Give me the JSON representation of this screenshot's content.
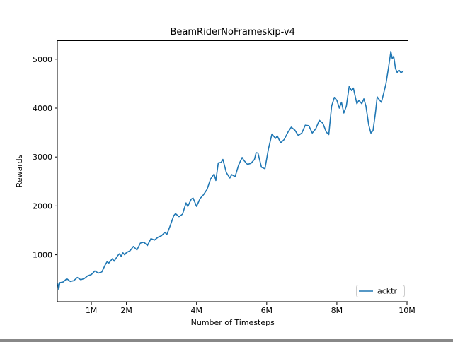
{
  "figure": {
    "background_color": "#ffffff",
    "accent_color": "#1f77b4",
    "spine_color": "#000000"
  },
  "chart_data": {
    "type": "line",
    "title": "BeamRiderNoFrameskip-v4",
    "xlabel": "Number of Timesteps",
    "ylabel": "Rewards",
    "x_unit": "millions of timesteps",
    "xlim": [
      0.03,
      10.03
    ],
    "ylim": [
      40,
      5380
    ],
    "grid": false,
    "legend_position": "lower right",
    "x_ticks": [
      {
        "value": 1,
        "label": "1M"
      },
      {
        "value": 2,
        "label": "2M"
      },
      {
        "value": 4,
        "label": "4M"
      },
      {
        "value": 6,
        "label": "6M"
      },
      {
        "value": 8,
        "label": "8M"
      },
      {
        "value": 10,
        "label": "10M"
      }
    ],
    "y_ticks": [
      {
        "value": 1000,
        "label": "1000"
      },
      {
        "value": 2000,
        "label": "2000"
      },
      {
        "value": 3000,
        "label": "3000"
      },
      {
        "value": 4000,
        "label": "4000"
      },
      {
        "value": 5000,
        "label": "5000"
      }
    ],
    "series": [
      {
        "name": "acktr",
        "color": "#1f77b4",
        "points": [
          [
            0.05,
            400
          ],
          [
            0.07,
            290
          ],
          [
            0.1,
            430
          ],
          [
            0.2,
            445
          ],
          [
            0.3,
            510
          ],
          [
            0.4,
            455
          ],
          [
            0.5,
            470
          ],
          [
            0.6,
            535
          ],
          [
            0.7,
            490
          ],
          [
            0.8,
            515
          ],
          [
            0.9,
            570
          ],
          [
            1.0,
            595
          ],
          [
            1.1,
            670
          ],
          [
            1.2,
            625
          ],
          [
            1.3,
            650
          ],
          [
            1.4,
            800
          ],
          [
            1.45,
            860
          ],
          [
            1.5,
            830
          ],
          [
            1.6,
            920
          ],
          [
            1.65,
            870
          ],
          [
            1.75,
            980
          ],
          [
            1.8,
            1020
          ],
          [
            1.85,
            970
          ],
          [
            1.9,
            1040
          ],
          [
            1.95,
            1000
          ],
          [
            2.0,
            1045
          ],
          [
            2.1,
            1080
          ],
          [
            2.2,
            1170
          ],
          [
            2.3,
            1100
          ],
          [
            2.4,
            1240
          ],
          [
            2.5,
            1255
          ],
          [
            2.6,
            1190
          ],
          [
            2.7,
            1330
          ],
          [
            2.8,
            1300
          ],
          [
            2.9,
            1360
          ],
          [
            3.0,
            1390
          ],
          [
            3.1,
            1460
          ],
          [
            3.15,
            1410
          ],
          [
            3.25,
            1600
          ],
          [
            3.35,
            1800
          ],
          [
            3.4,
            1840
          ],
          [
            3.5,
            1780
          ],
          [
            3.6,
            1830
          ],
          [
            3.7,
            2060
          ],
          [
            3.75,
            1990
          ],
          [
            3.85,
            2140
          ],
          [
            3.9,
            2160
          ],
          [
            4.0,
            1990
          ],
          [
            4.1,
            2150
          ],
          [
            4.2,
            2230
          ],
          [
            4.3,
            2340
          ],
          [
            4.4,
            2550
          ],
          [
            4.5,
            2650
          ],
          [
            4.55,
            2520
          ],
          [
            4.62,
            2880
          ],
          [
            4.7,
            2890
          ],
          [
            4.75,
            2950
          ],
          [
            4.85,
            2680
          ],
          [
            4.95,
            2570
          ],
          [
            5.0,
            2640
          ],
          [
            5.1,
            2600
          ],
          [
            5.2,
            2840
          ],
          [
            5.3,
            2990
          ],
          [
            5.35,
            2930
          ],
          [
            5.45,
            2850
          ],
          [
            5.55,
            2870
          ],
          [
            5.65,
            2950
          ],
          [
            5.7,
            3090
          ],
          [
            5.75,
            3080
          ],
          [
            5.85,
            2790
          ],
          [
            5.95,
            2760
          ],
          [
            6.05,
            3170
          ],
          [
            6.15,
            3470
          ],
          [
            6.25,
            3380
          ],
          [
            6.3,
            3430
          ],
          [
            6.4,
            3290
          ],
          [
            6.5,
            3360
          ],
          [
            6.6,
            3500
          ],
          [
            6.7,
            3610
          ],
          [
            6.8,
            3550
          ],
          [
            6.9,
            3440
          ],
          [
            7.0,
            3490
          ],
          [
            7.1,
            3650
          ],
          [
            7.2,
            3640
          ],
          [
            7.3,
            3490
          ],
          [
            7.4,
            3580
          ],
          [
            7.5,
            3750
          ],
          [
            7.6,
            3690
          ],
          [
            7.7,
            3510
          ],
          [
            7.77,
            3460
          ],
          [
            7.85,
            4040
          ],
          [
            7.93,
            4220
          ],
          [
            8.0,
            4160
          ],
          [
            8.07,
            4000
          ],
          [
            8.13,
            4120
          ],
          [
            8.2,
            3900
          ],
          [
            8.27,
            4040
          ],
          [
            8.35,
            4440
          ],
          [
            8.42,
            4360
          ],
          [
            8.47,
            4410
          ],
          [
            8.57,
            4090
          ],
          [
            8.63,
            4160
          ],
          [
            8.71,
            4090
          ],
          [
            8.77,
            4190
          ],
          [
            8.83,
            4040
          ],
          [
            8.91,
            3650
          ],
          [
            8.97,
            3490
          ],
          [
            9.03,
            3540
          ],
          [
            9.1,
            3900
          ],
          [
            9.15,
            4230
          ],
          [
            9.2,
            4180
          ],
          [
            9.27,
            4120
          ],
          [
            9.33,
            4290
          ],
          [
            9.4,
            4500
          ],
          [
            9.47,
            4820
          ],
          [
            9.54,
            5160
          ],
          [
            9.58,
            5010
          ],
          [
            9.62,
            5060
          ],
          [
            9.67,
            4810
          ],
          [
            9.72,
            4730
          ],
          [
            9.78,
            4770
          ],
          [
            9.83,
            4720
          ],
          [
            9.89,
            4760
          ]
        ]
      }
    ]
  }
}
